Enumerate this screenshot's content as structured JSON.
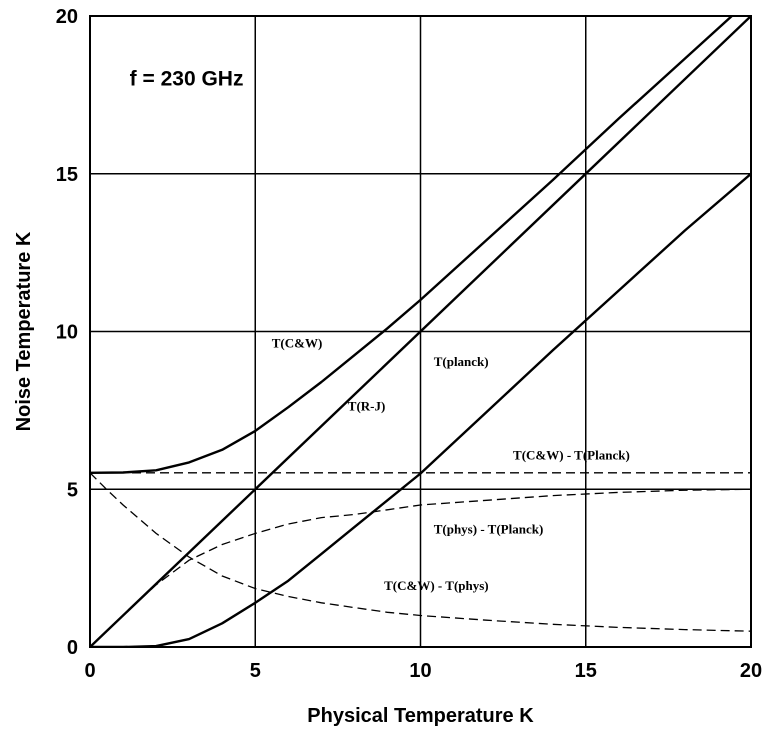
{
  "chart_data": {
    "type": "line",
    "xlabel": "Physical Temperature  K",
    "ylabel": "Noise Temperature  K",
    "xlim": [
      0,
      20
    ],
    "ylim": [
      0,
      20
    ],
    "xticks": [
      0,
      5,
      10,
      15,
      20
    ],
    "yticks": [
      0,
      5,
      10,
      15,
      20
    ],
    "grid": true,
    "annotations": [
      {
        "text": "f = 230 GHz",
        "x": 1.2,
        "y": 17.8,
        "size": "large"
      },
      {
        "text": "T(C&W)",
        "x": 5.5,
        "y": 9.5
      },
      {
        "text": "T(R-J)",
        "x": 7.8,
        "y": 7.5
      },
      {
        "text": "T(planck)",
        "x": 10.4,
        "y": 8.9
      },
      {
        "text": "T(C&W) - T(Planck)",
        "x": 12.8,
        "y": 5.95
      },
      {
        "text": "T(phys) - T(Planck)",
        "x": 10.4,
        "y": 3.6
      },
      {
        "text": "T(C&W) - T(phys)",
        "x": 8.9,
        "y": 1.8
      }
    ],
    "series": [
      {
        "style": "solid",
        "x": [
          0,
          1,
          2,
          3,
          4,
          5,
          6,
          7,
          8,
          9,
          10,
          12,
          14,
          16,
          18,
          20
        ],
        "values": [
          5.52,
          5.53,
          5.6,
          5.85,
          6.25,
          6.85,
          7.6,
          8.4,
          9.25,
          10.1,
          11.0,
          12.9,
          14.8,
          16.75,
          18.65,
          20.55
        ]
      },
      {
        "style": "solid",
        "x": [
          0,
          20
        ],
        "values": [
          0,
          20
        ]
      },
      {
        "style": "solid",
        "x": [
          0,
          1,
          2,
          3,
          4,
          5,
          6,
          7,
          8,
          9,
          10,
          12,
          14,
          16,
          18,
          20
        ],
        "values": [
          0,
          0.0,
          0.03,
          0.25,
          0.75,
          1.4,
          2.1,
          2.95,
          3.8,
          4.65,
          5.5,
          7.45,
          9.4,
          11.3,
          13.2,
          15.0
        ]
      },
      {
        "style": "dashed",
        "x": [
          0,
          2,
          4,
          6,
          8,
          10,
          12,
          14,
          16,
          18,
          20
        ],
        "values": [
          5.52,
          5.52,
          5.52,
          5.52,
          5.52,
          5.52,
          5.52,
          5.52,
          5.52,
          5.52,
          5.52
        ]
      },
      {
        "style": "dashed",
        "x": [
          0,
          1,
          2,
          3,
          4,
          5,
          6,
          7,
          8,
          9,
          10,
          12,
          14,
          16,
          18,
          20
        ],
        "values": [
          0,
          1.0,
          1.97,
          2.75,
          3.25,
          3.6,
          3.9,
          4.1,
          4.2,
          4.35,
          4.5,
          4.65,
          4.8,
          4.9,
          4.97,
          5.0
        ]
      },
      {
        "style": "dashed",
        "x": [
          0,
          0.5,
          1,
          2,
          3,
          4,
          5,
          6,
          7,
          8,
          9,
          10,
          12,
          14,
          16,
          18,
          20
        ],
        "values": [
          5.52,
          5.0,
          4.5,
          3.6,
          2.85,
          2.25,
          1.85,
          1.6,
          1.4,
          1.25,
          1.1,
          1.0,
          0.85,
          0.72,
          0.62,
          0.55,
          0.5
        ]
      }
    ]
  }
}
